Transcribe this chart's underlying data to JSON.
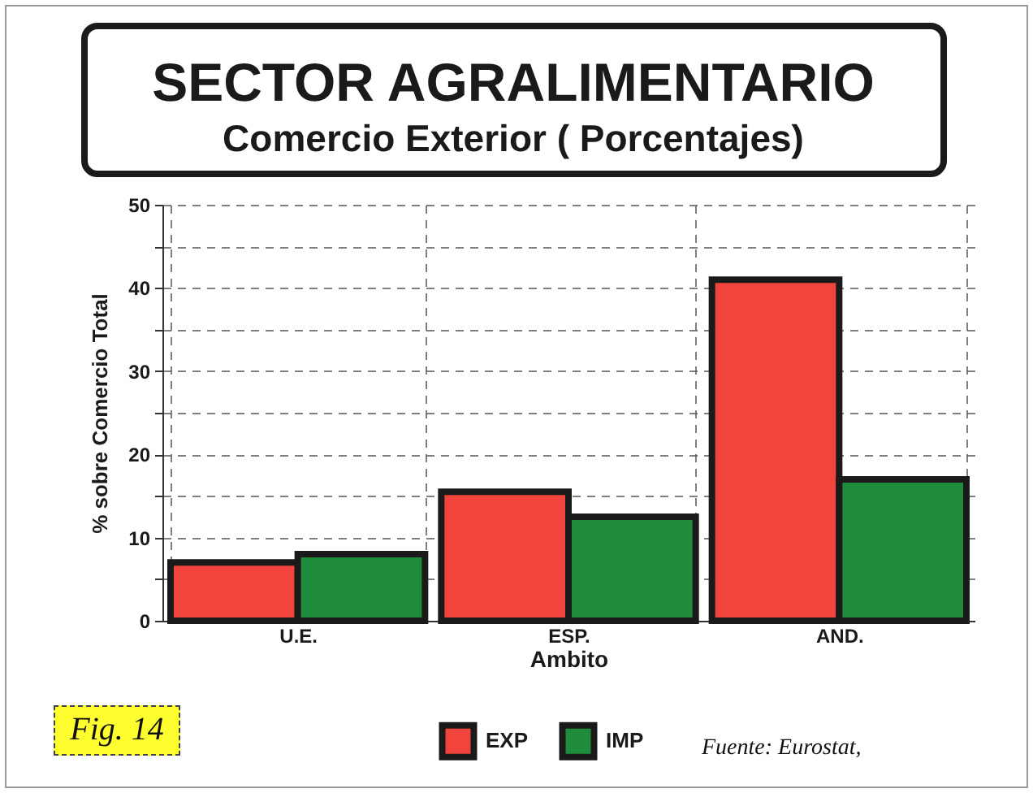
{
  "chart_data": {
    "type": "bar",
    "title": "SECTOR AGRALIMENTARIO",
    "subtitle": "Comercio Exterior ( Porcentajes)",
    "xlabel": "Ambito",
    "ylabel": "% sobre Comercio Total",
    "categories": [
      "U.E.",
      "ESP.",
      "AND."
    ],
    "series": [
      {
        "name": "EXP",
        "color": "#f0443c",
        "values": [
          7,
          15.5,
          41
        ]
      },
      {
        "name": "IMP",
        "color": "#1f8c3b",
        "values": [
          8,
          12.5,
          17
        ]
      }
    ],
    "ylim": [
      0,
      50
    ],
    "yticks": [
      0,
      {
        "value": 5,
        "label": null
      },
      10,
      {
        "value": 15,
        "label": null
      },
      20,
      {
        "value": 25,
        "label": null
      },
      30,
      {
        "value": 35,
        "label": null
      },
      40,
      {
        "value": 45,
        "label": null
      },
      50
    ],
    "grid": true,
    "legend": "bottom",
    "annotations": [
      "Fig. 14",
      "Fuente: Eurostat,"
    ]
  }
}
